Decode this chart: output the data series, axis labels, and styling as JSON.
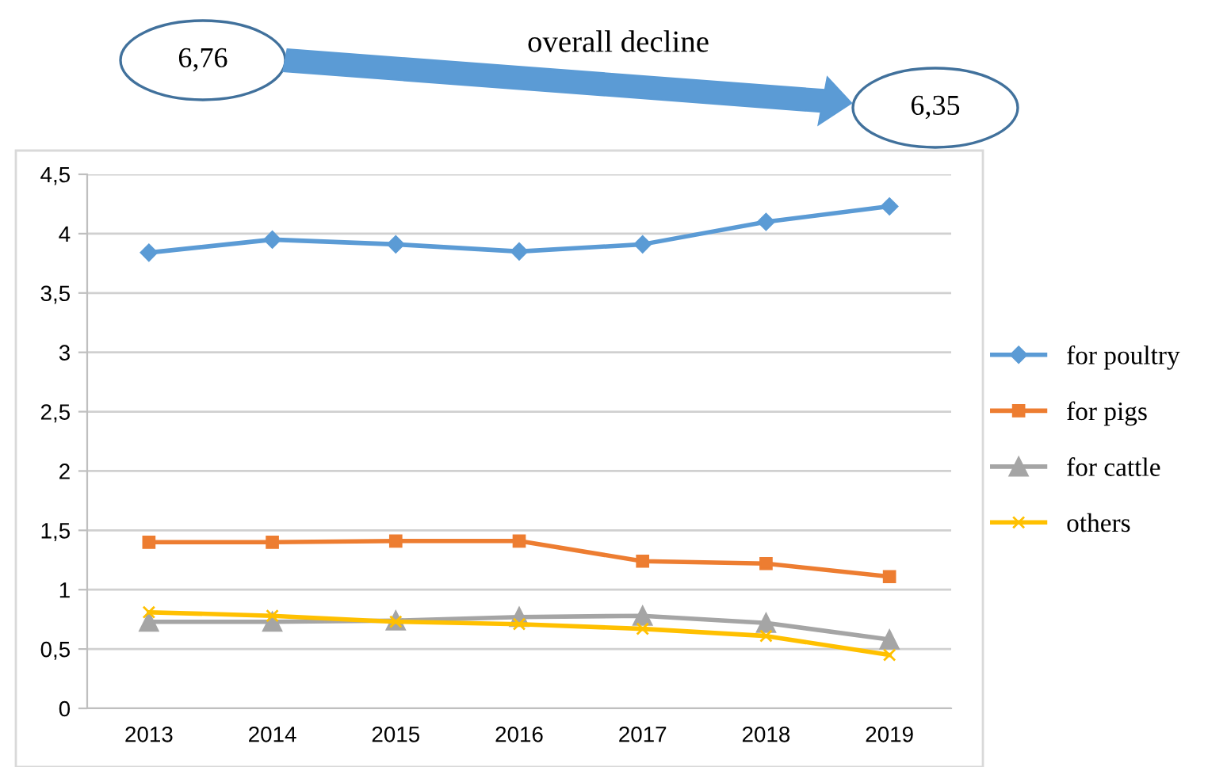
{
  "chart_data": {
    "type": "line",
    "annotations": [
      "6,76",
      "overall decline",
      "6,35"
    ],
    "categories": [
      "2013",
      "2014",
      "2015",
      "2016",
      "2017",
      "2018",
      "2019"
    ],
    "series": [
      {
        "name": "for poultry",
        "color": "#5b9bd5",
        "marker": "diamond",
        "values": [
          3.84,
          3.95,
          3.91,
          3.85,
          3.91,
          4.1,
          4.23
        ]
      },
      {
        "name": "for pigs",
        "color": "#ed7d31",
        "marker": "square",
        "values": [
          1.4,
          1.4,
          1.41,
          1.41,
          1.24,
          1.22,
          1.11
        ]
      },
      {
        "name": "for cattle",
        "color": "#a5a5a5",
        "marker": "triangle",
        "values": [
          0.73,
          0.73,
          0.74,
          0.77,
          0.78,
          0.72,
          0.58
        ]
      },
      {
        "name": "others",
        "color": "#ffc000",
        "marker": "cross",
        "values": [
          0.81,
          0.78,
          0.73,
          0.71,
          0.67,
          0.61,
          0.45
        ]
      }
    ],
    "ylim": [
      0,
      4.5
    ],
    "yticks": [
      0,
      {
        "value": 0.5,
        "label": "0,5"
      },
      1,
      {
        "value": 1.5,
        "label": "1,5"
      },
      2,
      {
        "value": 2.5,
        "label": "2,5"
      },
      3,
      {
        "value": 3.5,
        "label": "3,5"
      },
      4,
      {
        "value": 4.5,
        "label": "4,5"
      }
    ],
    "grid": "y",
    "legend": "right",
    "line_style": "solid"
  }
}
